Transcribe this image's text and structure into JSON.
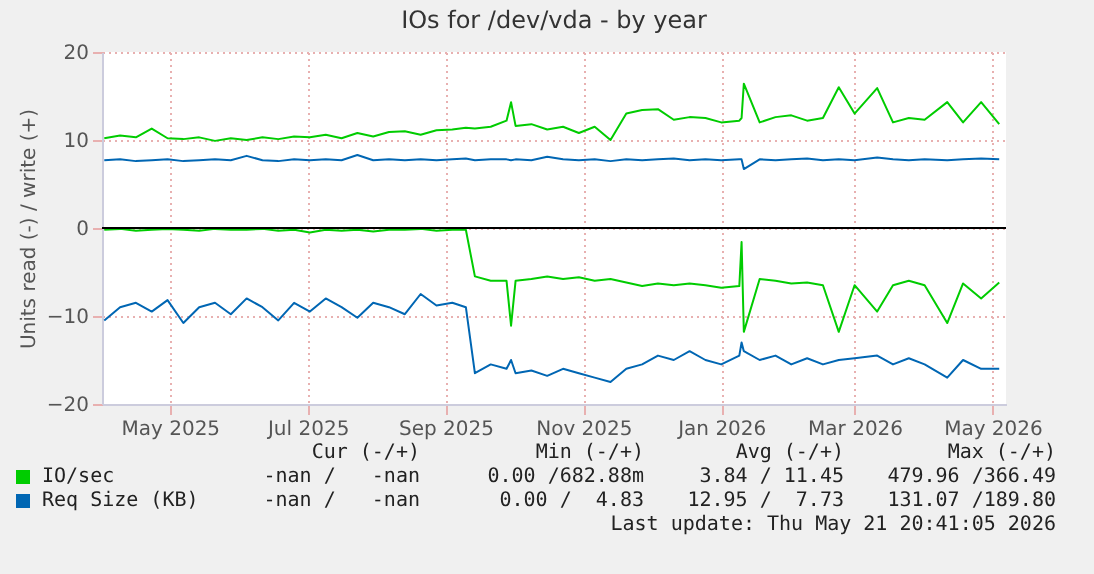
{
  "chart_data": {
    "type": "line",
    "title": "IOs for /dev/vda - by year",
    "ylabel": "Units read (-) / write (+)",
    "xlim": [
      "2025-04-16",
      "2026-05-21"
    ],
    "ylim": [
      -20,
      20
    ],
    "yticks": [
      -20,
      -10,
      0,
      10,
      20
    ],
    "xticks": [
      {
        "value": "2025-05-16",
        "label": "May 2025"
      },
      {
        "value": "2025-07-16",
        "label": "Jul 2025"
      },
      {
        "value": "2025-09-15",
        "label": "Sep 2025"
      },
      {
        "value": "2025-11-15",
        "label": "Nov 2025"
      },
      {
        "value": "2026-01-15",
        "label": "Jan 2026"
      },
      {
        "value": "2026-03-15",
        "label": "Mar 2026"
      },
      {
        "value": "2026-05-15",
        "label": "May 2026"
      }
    ],
    "grid": true,
    "legend": "bottom",
    "x": [
      "2025-04-17",
      "2025-04-24",
      "2025-05-01",
      "2025-05-08",
      "2025-05-15",
      "2025-05-22",
      "2025-05-29",
      "2025-06-05",
      "2025-06-12",
      "2025-06-19",
      "2025-06-26",
      "2025-07-03",
      "2025-07-10",
      "2025-07-17",
      "2025-07-24",
      "2025-07-31",
      "2025-08-07",
      "2025-08-14",
      "2025-08-21",
      "2025-08-28",
      "2025-09-04",
      "2025-09-11",
      "2025-09-18",
      "2025-09-24",
      "2025-09-28",
      "2025-10-05",
      "2025-10-12",
      "2025-10-14",
      "2025-10-16",
      "2025-10-23",
      "2025-10-30",
      "2025-11-06",
      "2025-11-13",
      "2025-11-20",
      "2025-11-27",
      "2025-12-04",
      "2025-12-11",
      "2025-12-18",
      "2025-12-25",
      "2026-01-01",
      "2026-01-08",
      "2026-01-15",
      "2026-01-23",
      "2026-01-24",
      "2026-01-25",
      "2026-02-01",
      "2026-02-08",
      "2026-02-15",
      "2026-02-22",
      "2026-03-01",
      "2026-03-08",
      "2026-03-15",
      "2026-03-25",
      "2026-04-01",
      "2026-04-08",
      "2026-04-15",
      "2026-04-25",
      "2026-05-02",
      "2026-05-10",
      "2026-05-18"
    ],
    "series": [
      {
        "name": "IO/sec",
        "color": "#00cc00",
        "values": [
          10.2,
          10.5,
          10.3,
          11.3,
          10.2,
          10.1,
          10.3,
          9.9,
          10.2,
          10.0,
          10.3,
          10.1,
          10.4,
          10.3,
          10.6,
          10.2,
          10.8,
          10.4,
          10.9,
          11.0,
          10.6,
          11.1,
          11.2,
          11.4,
          11.3,
          11.5,
          12.2,
          14.3,
          11.6,
          11.8,
          11.2,
          11.5,
          10.8,
          11.5,
          10.0,
          13.0,
          13.4,
          13.5,
          12.3,
          12.6,
          12.5,
          12.0,
          12.2,
          12.5,
          16.4,
          12.0,
          12.6,
          12.8,
          12.2,
          12.5,
          16.0,
          13.0,
          15.9,
          12.0,
          12.5,
          12.3,
          14.3,
          12.0,
          14.3,
          11.8
        ]
      },
      {
        "color": "#00cc00",
        "values": [
          -0.2,
          -0.1,
          -0.3,
          -0.2,
          -0.1,
          -0.2,
          -0.3,
          -0.1,
          -0.2,
          -0.2,
          -0.1,
          -0.3,
          -0.2,
          -0.5,
          -0.2,
          -0.3,
          -0.2,
          -0.4,
          -0.2,
          -0.2,
          -0.1,
          -0.3,
          -0.2,
          -0.2,
          -5.5,
          -6.0,
          -6.0,
          -11.1,
          -6.0,
          -5.8,
          -5.5,
          -5.8,
          -5.6,
          -6.0,
          -5.8,
          -6.2,
          -6.6,
          -6.3,
          -6.5,
          -6.3,
          -6.5,
          -6.8,
          -6.6,
          -1.6,
          -11.8,
          -5.8,
          -6.0,
          -6.3,
          -6.2,
          -6.5,
          -11.8,
          -6.5,
          -9.5,
          -6.5,
          -6.0,
          -6.5,
          -10.8,
          -6.3,
          -8.0,
          -6.2
        ]
      },
      {
        "name": "Req Size (KB)",
        "color": "#0066b3",
        "values": [
          7.7,
          7.8,
          7.6,
          7.7,
          7.8,
          7.6,
          7.7,
          7.8,
          7.7,
          8.2,
          7.7,
          7.6,
          7.8,
          7.7,
          7.8,
          7.7,
          8.3,
          7.7,
          7.8,
          7.7,
          7.8,
          7.7,
          7.8,
          7.9,
          7.7,
          7.8,
          7.8,
          7.7,
          7.8,
          7.7,
          8.1,
          7.8,
          7.7,
          7.8,
          7.6,
          7.8,
          7.7,
          7.8,
          7.9,
          7.7,
          7.8,
          7.7,
          7.8,
          7.8,
          6.7,
          7.8,
          7.7,
          7.8,
          7.9,
          7.7,
          7.8,
          7.7,
          8.0,
          7.8,
          7.7,
          7.8,
          7.7,
          7.8,
          7.9,
          7.8
        ]
      },
      {
        "color": "#0066b3",
        "values": [
          -10.5,
          -9.0,
          -8.5,
          -9.5,
          -8.2,
          -10.8,
          -9.0,
          -8.5,
          -9.8,
          -8.0,
          -9.0,
          -10.5,
          -8.5,
          -9.5,
          -8.0,
          -9.0,
          -10.2,
          -8.5,
          -9.0,
          -9.8,
          -7.5,
          -8.8,
          -8.5,
          -9.0,
          -16.5,
          -15.5,
          -16.0,
          -15.0,
          -16.5,
          -16.2,
          -16.8,
          -16.0,
          -16.5,
          -17.0,
          -17.5,
          -16.0,
          -15.5,
          -14.5,
          -15.0,
          -14.0,
          -15.0,
          -15.5,
          -14.5,
          -13.0,
          -14.0,
          -15.0,
          -14.5,
          -15.5,
          -14.8,
          -15.5,
          -15.0,
          -14.8,
          -14.5,
          -15.5,
          -14.8,
          -15.5,
          -17.0,
          -15.0,
          -16.0,
          -16.0
        ]
      }
    ],
    "ref_lines": [
      {
        "axis": "y",
        "value": 0,
        "color": "#000000"
      }
    ],
    "annotations": [
      "Cur (-/+)",
      "Min (-/+)",
      "Avg (-/+)",
      "Max (-/+)",
      "-nan /   -nan",
      "0.00 /682.88m",
      "3.84 / 11.45",
      "479.96 /366.49",
      "-nan /   -nan",
      "0.00 /  4.83",
      "12.95 /  7.73",
      "131.07 /189.80",
      "Last update: Thu May 21 20:41:05 2026"
    ]
  }
}
